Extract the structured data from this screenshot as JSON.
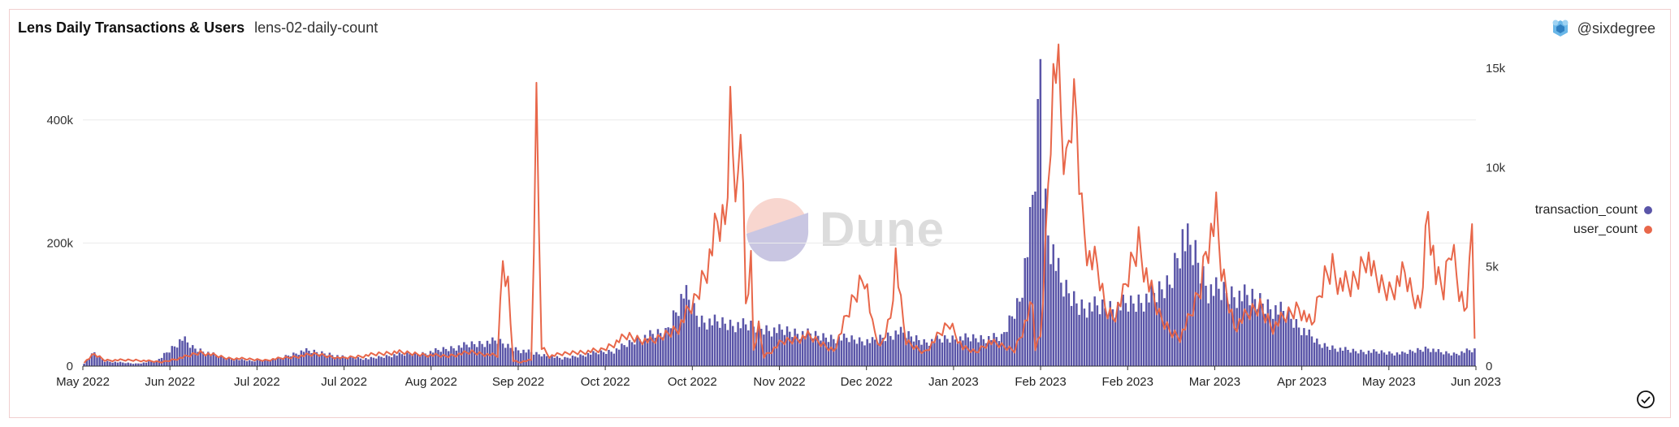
{
  "header": {
    "title": "Lens Daily Transactions & Users",
    "subtitle": "lens-02-daily-count",
    "author": "@sixdegree"
  },
  "watermark": "Dune",
  "colors": {
    "transaction": "#5a55a8",
    "user": "#e8674a",
    "grid": "#ececec",
    "axis": "#333333"
  },
  "chart_data": {
    "type": "bar",
    "grid": true,
    "legend_position": "right",
    "x_ticks": [
      "May 2022",
      "Jun 2022",
      "Jul 2022",
      "Jul 2022",
      "Aug 2022",
      "Sep 2022",
      "Oct 2022",
      "Oct 2022",
      "Nov 2022",
      "Dec 2022",
      "Jan 2023",
      "Feb 2023",
      "Feb 2023",
      "Mar 2023",
      "Apr 2023",
      "May 2023",
      "Jun 2023"
    ],
    "y_left_ticks": [
      "0",
      "200k",
      "400k"
    ],
    "y_right_ticks": [
      "0",
      "5k",
      "10k",
      "15k"
    ],
    "ylim_left": [
      0,
      500000
    ],
    "ylim_right": [
      0,
      15500
    ],
    "series": [
      {
        "name": "transaction_count",
        "axis": "left",
        "kind": "bar",
        "keypoints": [
          [
            0,
            5000
          ],
          [
            4,
            22000
          ],
          [
            8,
            8000
          ],
          [
            20,
            4000
          ],
          [
            28,
            8000
          ],
          [
            34,
            30000
          ],
          [
            38,
            45000
          ],
          [
            42,
            30000
          ],
          [
            55,
            12000
          ],
          [
            65,
            8000
          ],
          [
            75,
            12000
          ],
          [
            85,
            25000
          ],
          [
            95,
            20000
          ],
          [
            100,
            15000
          ],
          [
            110,
            12000
          ],
          [
            120,
            18000
          ],
          [
            130,
            20000
          ],
          [
            140,
            28000
          ],
          [
            150,
            35000
          ],
          [
            160,
            40000
          ],
          [
            165,
            30000
          ],
          [
            175,
            20000
          ],
          [
            185,
            12000
          ],
          [
            195,
            20000
          ],
          [
            205,
            25000
          ],
          [
            215,
            45000
          ],
          [
            225,
            55000
          ],
          [
            232,
            120000
          ],
          [
            238,
            75000
          ],
          [
            245,
            70000
          ],
          [
            255,
            65000
          ],
          [
            265,
            60000
          ],
          [
            275,
            55000
          ],
          [
            285,
            48000
          ],
          [
            295,
            45000
          ],
          [
            305,
            40000
          ],
          [
            315,
            55000
          ],
          [
            325,
            40000
          ],
          [
            335,
            45000
          ],
          [
            345,
            45000
          ],
          [
            355,
            45000
          ],
          [
            362,
            110000
          ],
          [
            366,
            220000
          ],
          [
            368,
            320000
          ],
          [
            369,
            380000
          ],
          [
            370,
            500000
          ],
          [
            371,
            300000
          ],
          [
            373,
            220000
          ],
          [
            378,
            130000
          ],
          [
            385,
            100000
          ],
          [
            395,
            95000
          ],
          [
            405,
            100000
          ],
          [
            415,
            115000
          ],
          [
            420,
            135000
          ],
          [
            423,
            185000
          ],
          [
            425,
            210000
          ],
          [
            430,
            180000
          ],
          [
            435,
            125000
          ],
          [
            445,
            115000
          ],
          [
            455,
            105000
          ],
          [
            465,
            85000
          ],
          [
            470,
            65000
          ],
          [
            478,
            35000
          ],
          [
            490,
            25000
          ],
          [
            500,
            23000
          ],
          [
            510,
            20000
          ],
          [
            515,
            25000
          ],
          [
            520,
            30000
          ],
          [
            525,
            22000
          ],
          [
            530,
            20000
          ],
          [
            536,
            25000
          ]
        ]
      },
      {
        "name": "user_count",
        "axis": "right",
        "kind": "line",
        "keypoints": [
          [
            0,
            200
          ],
          [
            4,
            600
          ],
          [
            8,
            300
          ],
          [
            20,
            300
          ],
          [
            30,
            200
          ],
          [
            40,
            500
          ],
          [
            45,
            700
          ],
          [
            55,
            400
          ],
          [
            70,
            300
          ],
          [
            90,
            600
          ],
          [
            100,
            400
          ],
          [
            120,
            700
          ],
          [
            140,
            500
          ],
          [
            150,
            700
          ],
          [
            160,
            500
          ],
          [
            162,
            5200
          ],
          [
            164,
            4000
          ],
          [
            166,
            300
          ],
          [
            168,
            200
          ],
          [
            173,
            300
          ],
          [
            175,
            12500
          ],
          [
            177,
            1000
          ],
          [
            180,
            500
          ],
          [
            190,
            700
          ],
          [
            200,
            800
          ],
          [
            210,
            1500
          ],
          [
            220,
            1200
          ],
          [
            230,
            2000
          ],
          [
            236,
            3200
          ],
          [
            242,
            5500
          ],
          [
            245,
            7000
          ],
          [
            248,
            7100
          ],
          [
            250,
            12600
          ],
          [
            251,
            11000
          ],
          [
            253,
            9000
          ],
          [
            254,
            12400
          ],
          [
            256,
            3000
          ],
          [
            258,
            5000
          ],
          [
            259,
            800
          ],
          [
            261,
            2000
          ],
          [
            263,
            500
          ],
          [
            270,
            1200
          ],
          [
            280,
            1500
          ],
          [
            290,
            800
          ],
          [
            298,
            3500
          ],
          [
            302,
            4800
          ],
          [
            305,
            2000
          ],
          [
            308,
            900
          ],
          [
            312,
            2500
          ],
          [
            314,
            5500
          ],
          [
            316,
            3000
          ],
          [
            318,
            1200
          ],
          [
            325,
            700
          ],
          [
            335,
            2200
          ],
          [
            340,
            900
          ],
          [
            345,
            700
          ],
          [
            350,
            1200
          ],
          [
            360,
            800
          ],
          [
            365,
            2500
          ],
          [
            367,
            3000
          ],
          [
            368,
            900
          ],
          [
            370,
            1500
          ],
          [
            372,
            6000
          ],
          [
            374,
            13000
          ],
          [
            376,
            15300
          ],
          [
            378,
            12000
          ],
          [
            380,
            9500
          ],
          [
            382,
            13000
          ],
          [
            384,
            12800
          ],
          [
            386,
            8000
          ],
          [
            389,
            5500
          ],
          [
            392,
            5000
          ],
          [
            395,
            3000
          ],
          [
            398,
            2500
          ],
          [
            402,
            3500
          ],
          [
            405,
            5000
          ],
          [
            408,
            6300
          ],
          [
            412,
            4000
          ],
          [
            416,
            2500
          ],
          [
            420,
            1800
          ],
          [
            424,
            1500
          ],
          [
            428,
            2500
          ],
          [
            432,
            4000
          ],
          [
            434,
            6000
          ],
          [
            438,
            7400
          ],
          [
            440,
            4800
          ],
          [
            445,
            2000
          ],
          [
            450,
            2500
          ],
          [
            455,
            3000
          ],
          [
            460,
            2000
          ],
          [
            465,
            2500
          ],
          [
            470,
            3000
          ],
          [
            475,
            2000
          ],
          [
            480,
            4500
          ],
          [
            483,
            5200
          ],
          [
            486,
            4200
          ],
          [
            490,
            4000
          ],
          [
            493,
            4600
          ],
          [
            496,
            5800
          ],
          [
            499,
            4500
          ],
          [
            502,
            4000
          ],
          [
            505,
            3800
          ],
          [
            508,
            4200
          ],
          [
            511,
            4500
          ],
          [
            514,
            3500
          ],
          [
            517,
            3000
          ],
          [
            520,
            8200
          ],
          [
            523,
            4500
          ],
          [
            526,
            3800
          ],
          [
            529,
            6300
          ],
          [
            532,
            4000
          ],
          [
            535,
            2500
          ],
          [
            537,
            8000
          ],
          [
            538,
            1200
          ]
        ]
      }
    ]
  }
}
